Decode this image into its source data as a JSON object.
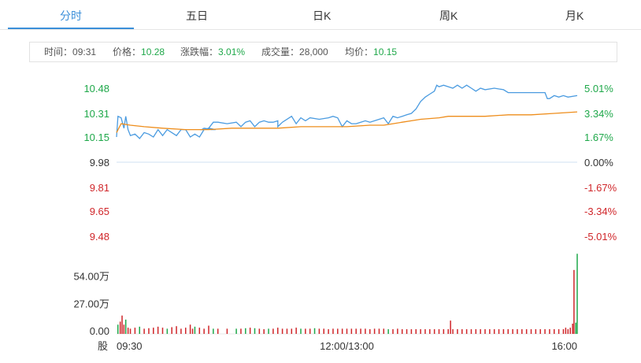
{
  "tabs": [
    {
      "label": "分时",
      "active": true
    },
    {
      "label": "五日",
      "active": false
    },
    {
      "label": "日K",
      "active": false
    },
    {
      "label": "周K",
      "active": false
    },
    {
      "label": "月K",
      "active": false
    }
  ],
  "info": {
    "time_label": "时间：",
    "time": "09:31",
    "price_label": "价格：",
    "price": "10.28",
    "change_label": "涨跌幅：",
    "change": "3.01%",
    "volume_label": "成交量：",
    "volume": "28,000",
    "avg_label": "均价：",
    "avg": "10.15"
  },
  "colors": {
    "up": "#1fa84a",
    "down": "#d0262a",
    "neutral": "#333333",
    "price_line": "#4a9be0",
    "avg_line": "#ee8d1b",
    "accent": "#3b8fd9"
  },
  "chart_data": {
    "type": "line",
    "price_axis": {
      "ticks": [
        "10.48",
        "10.31",
        "10.15",
        "9.98",
        "9.81",
        "9.65",
        "9.48"
      ],
      "tick_values": [
        10.48,
        10.31,
        10.15,
        9.98,
        9.81,
        9.65,
        9.48
      ],
      "prev_close": 9.98,
      "ylim": [
        9.48,
        10.48
      ]
    },
    "pct_axis": [
      "5.01%",
      "3.34%",
      "1.67%",
      "0.00%",
      "-1.67%",
      "-3.34%",
      "-5.01%"
    ],
    "x_ticks": [
      {
        "label": "09:30",
        "t": 0
      },
      {
        "label": "12:00/13:00",
        "t": 0.5
      },
      {
        "label": "16:00",
        "t": 1
      }
    ],
    "series": [
      {
        "key": "price",
        "points": [
          [
            0,
            10.15
          ],
          [
            0.003,
            10.29
          ],
          [
            0.01,
            10.28
          ],
          [
            0.016,
            10.21
          ],
          [
            0.02,
            10.29
          ],
          [
            0.025,
            10.2
          ],
          [
            0.03,
            10.16
          ],
          [
            0.04,
            10.17
          ],
          [
            0.05,
            10.14
          ],
          [
            0.06,
            10.18
          ],
          [
            0.07,
            10.17
          ],
          [
            0.08,
            10.15
          ],
          [
            0.09,
            10.2
          ],
          [
            0.1,
            10.16
          ],
          [
            0.11,
            10.2
          ],
          [
            0.12,
            10.18
          ],
          [
            0.13,
            10.16
          ],
          [
            0.14,
            10.2
          ],
          [
            0.15,
            10.2
          ],
          [
            0.16,
            10.15
          ],
          [
            0.17,
            10.17
          ],
          [
            0.18,
            10.15
          ],
          [
            0.19,
            10.2
          ],
          [
            0.2,
            10.21
          ],
          [
            0.21,
            10.2
          ],
          [
            0.19,
            10.21
          ],
          [
            0.185,
            10.2
          ],
          [
            0.19,
            10.2
          ],
          [
            0.2,
            10.21
          ],
          [
            0.205,
            10.2
          ],
          [
            0.21,
            10.2
          ],
          [
            0.215,
            10.2
          ],
          [
            0.2,
            10.21
          ],
          [
            0.21,
            10.25
          ],
          [
            0.22,
            10.25
          ],
          [
            0.24,
            10.24
          ],
          [
            0.26,
            10.25
          ],
          [
            0.27,
            10.22
          ],
          [
            0.28,
            10.25
          ],
          [
            0.29,
            10.26
          ],
          [
            0.3,
            10.22
          ],
          [
            0.31,
            10.25
          ],
          [
            0.32,
            10.26
          ],
          [
            0.33,
            10.25
          ],
          [
            0.34,
            10.25
          ],
          [
            0.35,
            10.26
          ],
          [
            0.35,
            10.22
          ],
          [
            0.36,
            10.25
          ],
          [
            0.38,
            10.29
          ],
          [
            0.39,
            10.24
          ],
          [
            0.4,
            10.28
          ],
          [
            0.41,
            10.26
          ],
          [
            0.42,
            10.28
          ],
          [
            0.44,
            10.27
          ],
          [
            0.46,
            10.28
          ],
          [
            0.47,
            10.29
          ],
          [
            0.48,
            10.28
          ],
          [
            0.49,
            10.22
          ],
          [
            0.5,
            10.26
          ],
          [
            0.51,
            10.24
          ],
          [
            0.52,
            10.24
          ],
          [
            0.53,
            10.25
          ],
          [
            0.54,
            10.26
          ],
          [
            0.55,
            10.25
          ],
          [
            0.56,
            10.26
          ],
          [
            0.58,
            10.28
          ],
          [
            0.59,
            10.24
          ],
          [
            0.6,
            10.29
          ],
          [
            0.61,
            10.28
          ],
          [
            0.62,
            10.29
          ],
          [
            0.63,
            10.3
          ],
          [
            0.64,
            10.31
          ],
          [
            0.65,
            10.34
          ],
          [
            0.66,
            10.39
          ],
          [
            0.67,
            10.42
          ],
          [
            0.68,
            10.44
          ],
          [
            0.69,
            10.46
          ],
          [
            0.695,
            10.5
          ],
          [
            0.7,
            10.49
          ],
          [
            0.71,
            10.5
          ],
          [
            0.72,
            10.49
          ],
          [
            0.73,
            10.48
          ],
          [
            0.74,
            10.5
          ],
          [
            0.75,
            10.48
          ],
          [
            0.76,
            10.5
          ],
          [
            0.77,
            10.48
          ],
          [
            0.78,
            10.46
          ],
          [
            0.79,
            10.48
          ],
          [
            0.8,
            10.47
          ],
          [
            0.82,
            10.48
          ],
          [
            0.84,
            10.47
          ],
          [
            0.85,
            10.45
          ],
          [
            0.87,
            10.45
          ],
          [
            0.9,
            10.45
          ],
          [
            0.92,
            10.45
          ],
          [
            0.93,
            10.45
          ],
          [
            0.935,
            10.41
          ],
          [
            0.94,
            10.41
          ],
          [
            0.95,
            10.43
          ],
          [
            0.96,
            10.42
          ],
          [
            0.97,
            10.43
          ],
          [
            0.98,
            10.42
          ],
          [
            1.0,
            10.43
          ]
        ]
      },
      {
        "key": "avg",
        "points": [
          [
            0,
            10.18
          ],
          [
            0.01,
            10.24
          ],
          [
            0.03,
            10.23
          ],
          [
            0.06,
            10.22
          ],
          [
            0.1,
            10.21
          ],
          [
            0.15,
            10.2
          ],
          [
            0.2,
            10.2
          ],
          [
            0.25,
            10.21
          ],
          [
            0.3,
            10.21
          ],
          [
            0.35,
            10.21
          ],
          [
            0.4,
            10.22
          ],
          [
            0.45,
            10.22
          ],
          [
            0.5,
            10.22
          ],
          [
            0.55,
            10.23
          ],
          [
            0.58,
            10.23
          ],
          [
            0.6,
            10.24
          ],
          [
            0.62,
            10.25
          ],
          [
            0.64,
            10.26
          ],
          [
            0.66,
            10.27
          ],
          [
            0.7,
            10.28
          ],
          [
            0.72,
            10.29
          ],
          [
            0.75,
            10.29
          ],
          [
            0.8,
            10.29
          ],
          [
            0.85,
            10.3
          ],
          [
            0.9,
            10.3
          ],
          [
            0.95,
            10.31
          ],
          [
            1.0,
            10.32
          ]
        ]
      }
    ],
    "volume": {
      "ticks": [
        "54.00万",
        "27.00万",
        "0.00"
      ],
      "tick_values": [
        540000,
        270000,
        0
      ],
      "ylim": [
        0,
        700000
      ],
      "bars": [
        {
          "t": 0.003,
          "v": 60000,
          "d": "up"
        },
        {
          "t": 0.008,
          "v": 90000,
          "d": "down"
        },
        {
          "t": 0.012,
          "v": 150000,
          "d": "down"
        },
        {
          "t": 0.016,
          "v": 60000,
          "d": "down"
        },
        {
          "t": 0.02,
          "v": 110000,
          "d": "up"
        },
        {
          "t": 0.025,
          "v": 30000,
          "d": "down"
        },
        {
          "t": 0.03,
          "v": 20000,
          "d": "down"
        },
        {
          "t": 0.04,
          "v": 30000,
          "d": "down"
        },
        {
          "t": 0.05,
          "v": 40000,
          "d": "up"
        },
        {
          "t": 0.06,
          "v": 20000,
          "d": "down"
        },
        {
          "t": 0.07,
          "v": 25000,
          "d": "down"
        },
        {
          "t": 0.08,
          "v": 30000,
          "d": "down"
        },
        {
          "t": 0.09,
          "v": 40000,
          "d": "down"
        },
        {
          "t": 0.1,
          "v": 30000,
          "d": "down"
        },
        {
          "t": 0.11,
          "v": 20000,
          "d": "up"
        },
        {
          "t": 0.12,
          "v": 35000,
          "d": "down"
        },
        {
          "t": 0.13,
          "v": 45000,
          "d": "down"
        },
        {
          "t": 0.14,
          "v": 20000,
          "d": "down"
        },
        {
          "t": 0.15,
          "v": 30000,
          "d": "down"
        },
        {
          "t": 0.16,
          "v": 60000,
          "d": "down"
        },
        {
          "t": 0.165,
          "v": 20000,
          "d": "down"
        },
        {
          "t": 0.17,
          "v": 40000,
          "d": "up"
        },
        {
          "t": 0.18,
          "v": 30000,
          "d": "down"
        },
        {
          "t": 0.19,
          "v": 20000,
          "d": "down"
        },
        {
          "t": 0.2,
          "v": 50000,
          "d": "down"
        },
        {
          "t": 0.21,
          "v": 20000,
          "d": "up"
        },
        {
          "t": 0.22,
          "v": 20000,
          "d": "down"
        },
        {
          "t": 0.24,
          "v": 20000,
          "d": "down"
        },
        {
          "t": 0.26,
          "v": 20000,
          "d": "up"
        },
        {
          "t": 0.27,
          "v": 20000,
          "d": "down"
        },
        {
          "t": 0.28,
          "v": 25000,
          "d": "up"
        },
        {
          "t": 0.29,
          "v": 30000,
          "d": "down"
        },
        {
          "t": 0.3,
          "v": 25000,
          "d": "up"
        },
        {
          "t": 0.31,
          "v": 20000,
          "d": "down"
        },
        {
          "t": 0.32,
          "v": 15000,
          "d": "down"
        },
        {
          "t": 0.33,
          "v": 20000,
          "d": "up"
        },
        {
          "t": 0.34,
          "v": 20000,
          "d": "down"
        },
        {
          "t": 0.35,
          "v": 30000,
          "d": "down"
        },
        {
          "t": 0.36,
          "v": 20000,
          "d": "down"
        },
        {
          "t": 0.37,
          "v": 20000,
          "d": "down"
        },
        {
          "t": 0.38,
          "v": 20000,
          "d": "down"
        },
        {
          "t": 0.39,
          "v": 30000,
          "d": "down"
        },
        {
          "t": 0.4,
          "v": 20000,
          "d": "up"
        },
        {
          "t": 0.41,
          "v": 20000,
          "d": "down"
        },
        {
          "t": 0.42,
          "v": 20000,
          "d": "down"
        },
        {
          "t": 0.43,
          "v": 25000,
          "d": "up"
        },
        {
          "t": 0.44,
          "v": 20000,
          "d": "down"
        },
        {
          "t": 0.45,
          "v": 20000,
          "d": "down"
        },
        {
          "t": 0.46,
          "v": 15000,
          "d": "down"
        },
        {
          "t": 0.47,
          "v": 20000,
          "d": "down"
        },
        {
          "t": 0.48,
          "v": 20000,
          "d": "down"
        },
        {
          "t": 0.49,
          "v": 20000,
          "d": "down"
        },
        {
          "t": 0.5,
          "v": 20000,
          "d": "down"
        },
        {
          "t": 0.51,
          "v": 20000,
          "d": "down"
        },
        {
          "t": 0.52,
          "v": 20000,
          "d": "down"
        },
        {
          "t": 0.53,
          "v": 20000,
          "d": "down"
        },
        {
          "t": 0.54,
          "v": 20000,
          "d": "down"
        },
        {
          "t": 0.55,
          "v": 15000,
          "d": "down"
        },
        {
          "t": 0.56,
          "v": 20000,
          "d": "down"
        },
        {
          "t": 0.57,
          "v": 20000,
          "d": "down"
        },
        {
          "t": 0.58,
          "v": 20000,
          "d": "down"
        },
        {
          "t": 0.59,
          "v": 15000,
          "d": "up"
        },
        {
          "t": 0.6,
          "v": 15000,
          "d": "down"
        },
        {
          "t": 0.61,
          "v": 20000,
          "d": "down"
        },
        {
          "t": 0.62,
          "v": 15000,
          "d": "down"
        },
        {
          "t": 0.63,
          "v": 15000,
          "d": "down"
        },
        {
          "t": 0.64,
          "v": 15000,
          "d": "down"
        },
        {
          "t": 0.65,
          "v": 15000,
          "d": "down"
        },
        {
          "t": 0.66,
          "v": 15000,
          "d": "down"
        },
        {
          "t": 0.67,
          "v": 15000,
          "d": "down"
        },
        {
          "t": 0.68,
          "v": 15000,
          "d": "down"
        },
        {
          "t": 0.69,
          "v": 15000,
          "d": "down"
        },
        {
          "t": 0.7,
          "v": 15000,
          "d": "down"
        },
        {
          "t": 0.71,
          "v": 15000,
          "d": "down"
        },
        {
          "t": 0.72,
          "v": 15000,
          "d": "down"
        },
        {
          "t": 0.725,
          "v": 100000,
          "d": "down"
        },
        {
          "t": 0.73,
          "v": 15000,
          "d": "down"
        },
        {
          "t": 0.74,
          "v": 15000,
          "d": "down"
        },
        {
          "t": 0.75,
          "v": 15000,
          "d": "down"
        },
        {
          "t": 0.76,
          "v": 15000,
          "d": "down"
        },
        {
          "t": 0.77,
          "v": 15000,
          "d": "down"
        },
        {
          "t": 0.78,
          "v": 15000,
          "d": "down"
        },
        {
          "t": 0.79,
          "v": 15000,
          "d": "down"
        },
        {
          "t": 0.8,
          "v": 15000,
          "d": "down"
        },
        {
          "t": 0.81,
          "v": 15000,
          "d": "down"
        },
        {
          "t": 0.82,
          "v": 15000,
          "d": "down"
        },
        {
          "t": 0.83,
          "v": 15000,
          "d": "down"
        },
        {
          "t": 0.84,
          "v": 15000,
          "d": "down"
        },
        {
          "t": 0.85,
          "v": 15000,
          "d": "down"
        },
        {
          "t": 0.86,
          "v": 15000,
          "d": "down"
        },
        {
          "t": 0.87,
          "v": 15000,
          "d": "down"
        },
        {
          "t": 0.88,
          "v": 15000,
          "d": "down"
        },
        {
          "t": 0.89,
          "v": 15000,
          "d": "down"
        },
        {
          "t": 0.9,
          "v": 15000,
          "d": "down"
        },
        {
          "t": 0.91,
          "v": 15000,
          "d": "down"
        },
        {
          "t": 0.92,
          "v": 15000,
          "d": "down"
        },
        {
          "t": 0.93,
          "v": 15000,
          "d": "down"
        },
        {
          "t": 0.94,
          "v": 15000,
          "d": "down"
        },
        {
          "t": 0.95,
          "v": 15000,
          "d": "down"
        },
        {
          "t": 0.96,
          "v": 15000,
          "d": "down"
        },
        {
          "t": 0.97,
          "v": 15000,
          "d": "down"
        },
        {
          "t": 0.975,
          "v": 30000,
          "d": "down"
        },
        {
          "t": 0.98,
          "v": 15000,
          "d": "down"
        },
        {
          "t": 0.985,
          "v": 30000,
          "d": "down"
        },
        {
          "t": 0.99,
          "v": 70000,
          "d": "down"
        },
        {
          "t": 0.993,
          "v": 600000,
          "d": "down"
        },
        {
          "t": 0.997,
          "v": 80000,
          "d": "up"
        },
        {
          "t": 1.0,
          "v": 760000,
          "d": "up"
        }
      ]
    },
    "bottom_left_label": "股"
  }
}
